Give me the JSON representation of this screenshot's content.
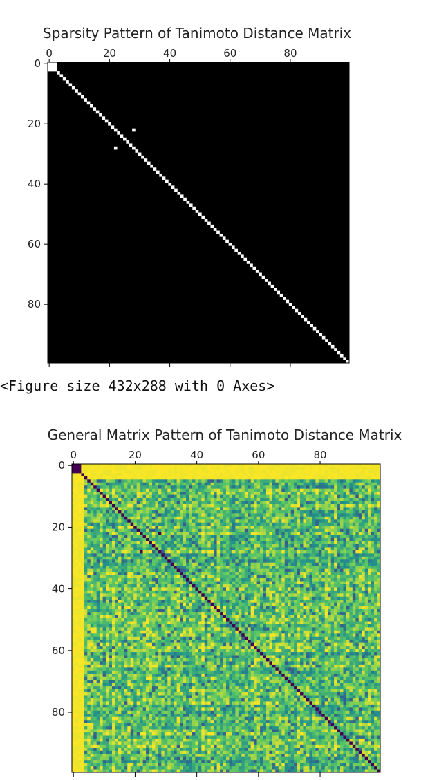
{
  "figure_note": "<Figure size 432x288 with 0 Axes>",
  "chart_data": [
    {
      "type": "heatmap",
      "title": "Sparsity Pattern of Tanimoto Distance Matrix",
      "matrix_size": 100,
      "x_ticks": [
        0,
        20,
        40,
        60,
        80
      ],
      "y_ticks": [
        0,
        20,
        40,
        60,
        80
      ],
      "xlim": [
        0,
        100
      ],
      "ylim": [
        0,
        100
      ],
      "colors": {
        "zero": "#000000",
        "nonzero": "#ffffff"
      },
      "description_values": {
        "nonzero_diagonal": true,
        "nonzero_block": [
          [
            0,
            0
          ],
          [
            0,
            1
          ],
          [
            0,
            2
          ],
          [
            1,
            0
          ],
          [
            1,
            1
          ],
          [
            1,
            2
          ],
          [
            2,
            0
          ],
          [
            2,
            1
          ],
          [
            2,
            2
          ]
        ],
        "nonzero_offdiagonal": [
          [
            22,
            28
          ],
          [
            28,
            22
          ]
        ]
      }
    },
    {
      "type": "heatmap",
      "title": "General Matrix Pattern of Tanimoto Distance Matrix",
      "matrix_size": 100,
      "x_ticks": [
        0,
        20,
        40,
        60,
        80
      ],
      "y_ticks": [
        0,
        20,
        40,
        60,
        80
      ],
      "xlim": [
        0,
        100
      ],
      "ylim": [
        0,
        100
      ],
      "colormap": "viridis",
      "value_range": [
        0,
        1
      ],
      "zero_cells": [
        [
          22,
          28
        ],
        [
          28,
          22
        ],
        [
          0,
          0
        ],
        [
          0,
          1
        ],
        [
          0,
          2
        ],
        [
          1,
          0
        ],
        [
          1,
          1
        ],
        [
          1,
          2
        ],
        [
          2,
          0
        ],
        [
          2,
          1
        ],
        [
          2,
          2
        ]
      ],
      "high_columns": [
        0,
        1,
        2,
        3
      ],
      "high_rows": [
        0,
        1,
        2,
        3,
        4
      ]
    }
  ]
}
